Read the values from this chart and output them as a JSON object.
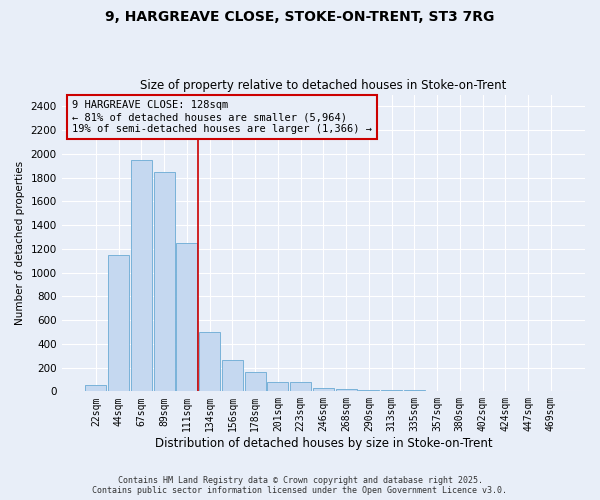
{
  "title_line1": "9, HARGREAVE CLOSE, STOKE-ON-TRENT, ST3 7RG",
  "title_line2": "Size of property relative to detached houses in Stoke-on-Trent",
  "xlabel": "Distribution of detached houses by size in Stoke-on-Trent",
  "ylabel": "Number of detached properties",
  "categories": [
    "22sqm",
    "44sqm",
    "67sqm",
    "89sqm",
    "111sqm",
    "134sqm",
    "156sqm",
    "178sqm",
    "201sqm",
    "223sqm",
    "246sqm",
    "268sqm",
    "290sqm",
    "313sqm",
    "335sqm",
    "357sqm",
    "380sqm",
    "402sqm",
    "424sqm",
    "447sqm",
    "469sqm"
  ],
  "values": [
    50,
    1150,
    1950,
    1850,
    1250,
    500,
    265,
    165,
    80,
    80,
    30,
    20,
    15,
    10,
    8,
    5,
    5,
    3,
    2,
    2,
    2
  ],
  "bar_color": "#c5d8f0",
  "bar_edge_color": "#6aaad4",
  "vline_index": 4.5,
  "vline_color": "#cc0000",
  "annotation_text": "9 HARGREAVE CLOSE: 128sqm\n← 81% of detached houses are smaller (5,964)\n19% of semi-detached houses are larger (1,366) →",
  "annotation_box_facecolor": "#e8eef8",
  "annotation_box_edgecolor": "#cc0000",
  "ylim": [
    0,
    2500
  ],
  "yticks": [
    0,
    200,
    400,
    600,
    800,
    1000,
    1200,
    1400,
    1600,
    1800,
    2000,
    2200,
    2400
  ],
  "background_color": "#e8eef8",
  "grid_color": "#ffffff",
  "footer_line1": "Contains HM Land Registry data © Crown copyright and database right 2025.",
  "footer_line2": "Contains public sector information licensed under the Open Government Licence v3.0."
}
